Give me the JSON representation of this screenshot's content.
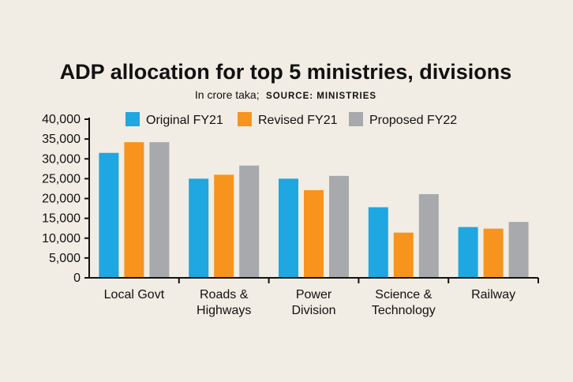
{
  "chart_data": {
    "type": "bar",
    "title": "ADP allocation for top 5 ministries, divisions",
    "subtitle": "In crore taka;",
    "source": "SOURCE: MINISTRIES",
    "categories": [
      [
        "Local Govt"
      ],
      [
        "Roads &",
        "Highways"
      ],
      [
        "Power",
        "Division"
      ],
      [
        "Science &",
        "Technology"
      ],
      [
        "Railway"
      ]
    ],
    "series": [
      {
        "name": "Original FY21",
        "color": "#1ea7e1",
        "values": [
          31500,
          25000,
          25000,
          17800,
          12800
        ]
      },
      {
        "name": "Revised FY21",
        "color": "#f7941d",
        "values": [
          34200,
          26000,
          22100,
          11400,
          12400
        ]
      },
      {
        "name": "Proposed FY22",
        "color": "#a7a9ac",
        "values": [
          34200,
          28300,
          25700,
          21100,
          14100
        ]
      }
    ],
    "yticks": [
      "40,000",
      "35,000",
      "30,000",
      "25,000",
      "20,000",
      "15,000",
      "10,000",
      "5,000",
      "0"
    ],
    "ylim": [
      0,
      40000
    ],
    "grid": false,
    "legend": "top"
  }
}
